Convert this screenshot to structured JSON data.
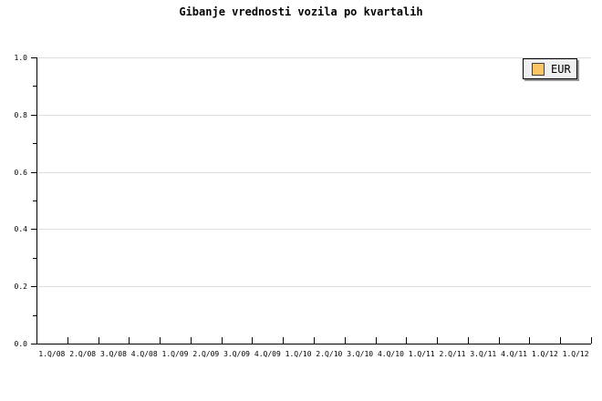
{
  "title": "Gibanje vrednosti vozila po kvartalih",
  "legend": {
    "position": "top-right",
    "items": [
      {
        "label": "EUR",
        "swatch_color": "#FBC566"
      }
    ]
  },
  "colors": {
    "background": "#ffffff",
    "axis": "#000000",
    "gridline": "#dedede",
    "text": "#000000",
    "legend_bg": "#efefef",
    "legend_border": "#000000",
    "legend_shadow": "#999999",
    "swatch_border": "#404040"
  },
  "chart_data": {
    "type": "bar",
    "title": "Gibanje vrednosti vozila po kvartalih",
    "categories": [
      "1.Q/08",
      "2.Q/08",
      "3.Q/08",
      "4.Q/08",
      "1.Q/09",
      "2.Q/09",
      "3.Q/09",
      "4.Q/09",
      "1.Q/10",
      "2.Q/10",
      "3.Q/10",
      "4.Q/10",
      "1.Q/11",
      "2.Q/11",
      "3.Q/11",
      "4.Q/11",
      "1.Q/12",
      "1.Q/12"
    ],
    "series": [
      {
        "name": "EUR",
        "values": []
      }
    ],
    "xlabel": "",
    "ylabel": "",
    "ylim": [
      0.0,
      1.0
    ],
    "y_ticks": [
      0.0,
      0.2,
      0.4,
      0.6,
      0.8,
      1.0
    ],
    "y_minor_step": 0.1,
    "grid": "horizontal-only",
    "legend_position": "top-right"
  }
}
